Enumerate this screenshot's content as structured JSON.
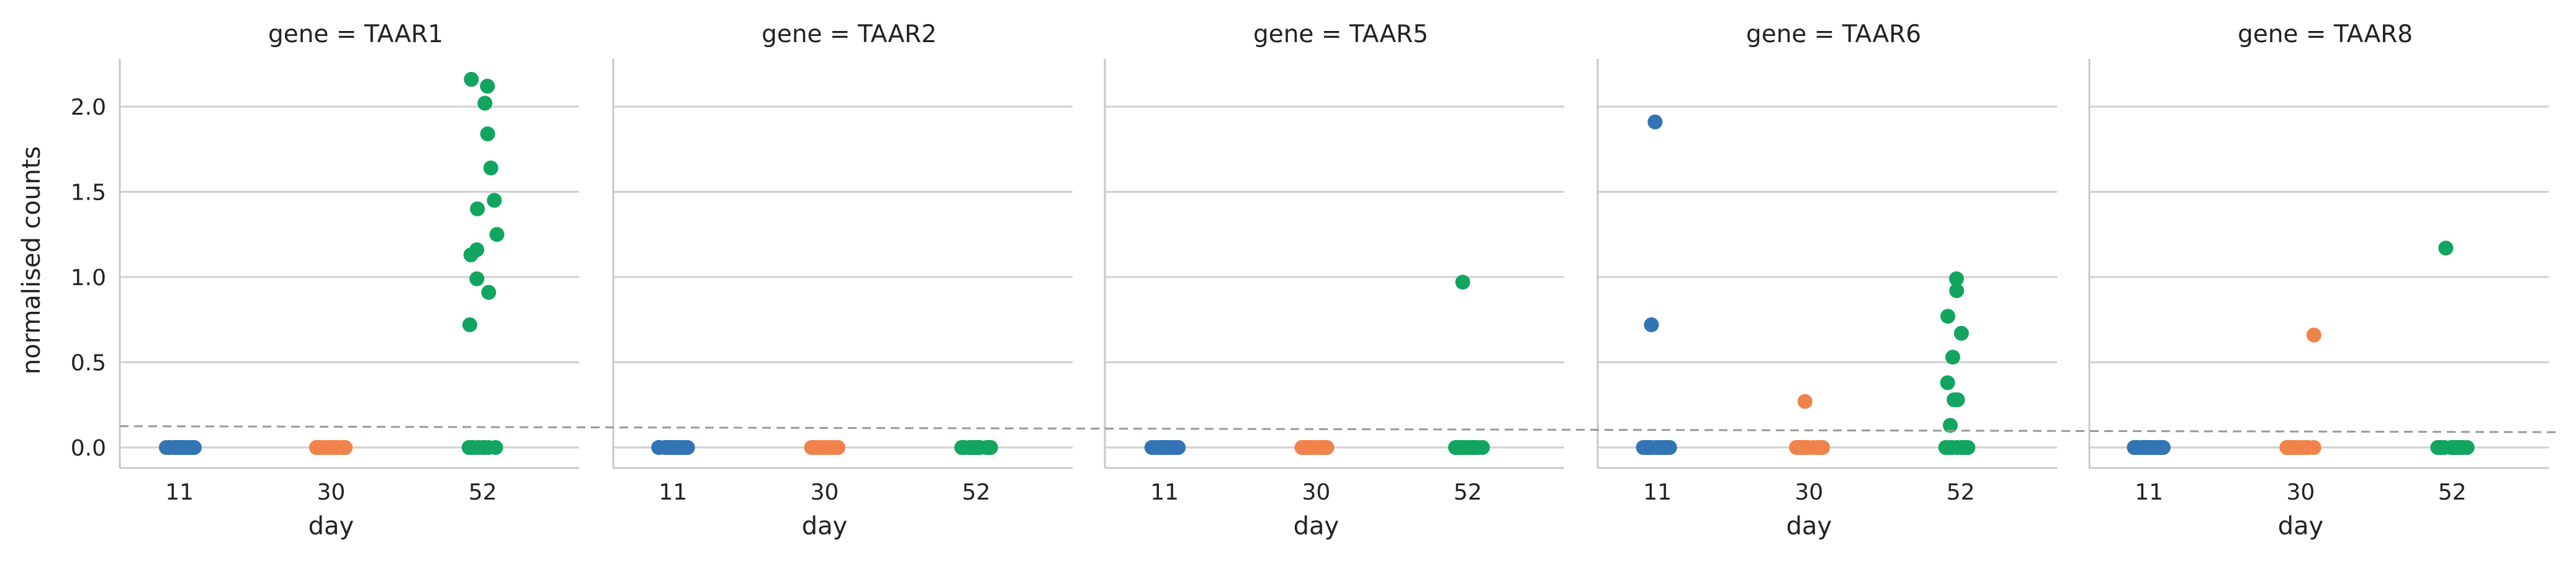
{
  "chart_data": {
    "type": "scatter",
    "subtype": "strip",
    "xlabel": "day",
    "ylabel": "normalised counts",
    "x_categories": [
      "11",
      "30",
      "52"
    ],
    "y_ticks": [
      "0.0",
      "0.5",
      "1.0",
      "1.5",
      "2.0"
    ],
    "ylim": [
      -0.12,
      2.28
    ],
    "grid": "horizontal",
    "colors": {
      "11": "#3274b4",
      "30": "#f0834c",
      "52": "#12a55f"
    },
    "threshold_line": {
      "y_start": 0.125,
      "y_end": 0.09,
      "style": "dashed",
      "color": "#999999"
    },
    "facets": [
      {
        "title": "gene = TAAR1",
        "points": [
          {
            "day": "11",
            "values": [
              0,
              0,
              0,
              0,
              0,
              0,
              0,
              0,
              0,
              0,
              0,
              0,
              0,
              0,
              0,
              0,
              0,
              0,
              0,
              0,
              0,
              0
            ]
          },
          {
            "day": "30",
            "values": [
              0,
              0,
              0,
              0,
              0,
              0,
              0,
              0,
              0,
              0,
              0,
              0,
              0,
              0,
              0,
              0,
              0,
              0,
              0,
              0,
              0,
              0
            ]
          },
          {
            "day": "52",
            "values": [
              2.16,
              2.12,
              2.02,
              1.84,
              1.64,
              1.45,
              1.4,
              1.25,
              1.16,
              1.13,
              0.99,
              0.91,
              0.72,
              0,
              0,
              0,
              0,
              0,
              0,
              0,
              0,
              0
            ]
          }
        ]
      },
      {
        "title": "gene = TAAR2",
        "points": [
          {
            "day": "11",
            "values": [
              0,
              0,
              0,
              0,
              0,
              0,
              0,
              0,
              0,
              0,
              0,
              0,
              0,
              0,
              0,
              0,
              0,
              0,
              0,
              0,
              0,
              0
            ]
          },
          {
            "day": "30",
            "values": [
              0,
              0,
              0,
              0,
              0,
              0,
              0,
              0,
              0,
              0,
              0,
              0,
              0,
              0,
              0,
              0,
              0,
              0,
              0,
              0,
              0,
              0
            ]
          },
          {
            "day": "52",
            "values": [
              0,
              0,
              0,
              0,
              0,
              0,
              0,
              0,
              0,
              0,
              0,
              0,
              0,
              0,
              0,
              0,
              0,
              0,
              0,
              0,
              0,
              0
            ]
          }
        ]
      },
      {
        "title": "gene = TAAR5",
        "points": [
          {
            "day": "11",
            "values": [
              0,
              0,
              0,
              0,
              0,
              0,
              0,
              0,
              0,
              0,
              0,
              0,
              0,
              0,
              0,
              0,
              0,
              0,
              0,
              0,
              0,
              0
            ]
          },
          {
            "day": "30",
            "values": [
              0,
              0,
              0,
              0,
              0,
              0,
              0,
              0,
              0,
              0,
              0,
              0,
              0,
              0,
              0,
              0,
              0,
              0,
              0,
              0,
              0,
              0
            ]
          },
          {
            "day": "52",
            "values": [
              0.97,
              0,
              0,
              0,
              0,
              0,
              0,
              0,
              0,
              0,
              0,
              0,
              0,
              0,
              0,
              0,
              0,
              0,
              0,
              0,
              0,
              0
            ]
          }
        ]
      },
      {
        "title": "gene = TAAR6",
        "points": [
          {
            "day": "11",
            "values": [
              1.91,
              0.72,
              0,
              0,
              0,
              0,
              0,
              0,
              0,
              0,
              0,
              0,
              0,
              0,
              0,
              0,
              0,
              0,
              0,
              0,
              0,
              0
            ]
          },
          {
            "day": "30",
            "values": [
              0.27,
              0,
              0,
              0,
              0,
              0,
              0,
              0,
              0,
              0,
              0,
              0,
              0,
              0,
              0,
              0,
              0,
              0,
              0,
              0,
              0,
              0
            ]
          },
          {
            "day": "52",
            "values": [
              0.99,
              0.92,
              0.77,
              0.67,
              0.53,
              0.38,
              0.28,
              0.28,
              0.13,
              0,
              0,
              0,
              0,
              0,
              0,
              0,
              0,
              0,
              0,
              0,
              0,
              0
            ]
          }
        ]
      },
      {
        "title": "gene = TAAR8",
        "points": [
          {
            "day": "11",
            "values": [
              0,
              0,
              0,
              0,
              0,
              0,
              0,
              0,
              0,
              0,
              0,
              0,
              0,
              0,
              0,
              0,
              0,
              0,
              0,
              0,
              0,
              0
            ]
          },
          {
            "day": "30",
            "values": [
              0.66,
              0,
              0,
              0,
              0,
              0,
              0,
              0,
              0,
              0,
              0,
              0,
              0,
              0,
              0,
              0,
              0,
              0,
              0,
              0,
              0,
              0
            ]
          },
          {
            "day": "52",
            "values": [
              1.17,
              0,
              0,
              0,
              0,
              0,
              0,
              0,
              0,
              0,
              0,
              0,
              0,
              0,
              0,
              0,
              0,
              0,
              0,
              0,
              0,
              0
            ]
          }
        ]
      }
    ]
  }
}
